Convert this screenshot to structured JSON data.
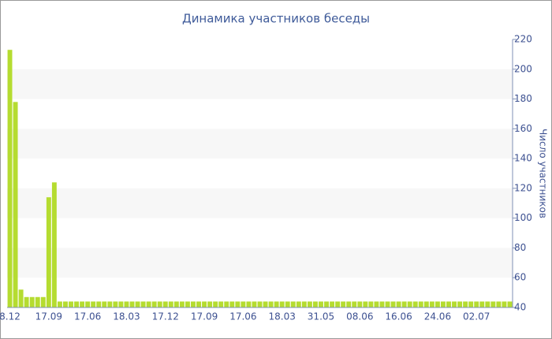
{
  "chart_data": {
    "type": "bar",
    "title": "Динамика участников беседы",
    "y_label": "Число участников",
    "categories": [
      "8.12",
      null,
      null,
      null,
      null,
      null,
      null,
      "17.09",
      null,
      null,
      null,
      null,
      null,
      null,
      "17.06",
      null,
      null,
      null,
      null,
      null,
      null,
      "18.03",
      null,
      null,
      null,
      null,
      null,
      null,
      "17.12",
      null,
      null,
      null,
      null,
      null,
      null,
      "17.09",
      null,
      null,
      null,
      null,
      null,
      null,
      "17.06",
      null,
      null,
      null,
      null,
      null,
      null,
      "18.03",
      null,
      null,
      null,
      null,
      null,
      null,
      "31.05",
      null,
      null,
      null,
      null,
      null,
      null,
      "08.06",
      null,
      null,
      null,
      null,
      null,
      null,
      "16.06",
      null,
      null,
      null,
      null,
      null,
      null,
      "24.06",
      null,
      null,
      null,
      null,
      null,
      null,
      "02.07",
      null,
      null,
      null,
      null,
      null,
      null
    ],
    "values": [
      213,
      178,
      52,
      47,
      47,
      47,
      47,
      114,
      124,
      44,
      44,
      44,
      44,
      44,
      44,
      44,
      44,
      44,
      44,
      44,
      44,
      44,
      44,
      44,
      44,
      44,
      44,
      44,
      44,
      44,
      44,
      44,
      44,
      44,
      44,
      44,
      44,
      44,
      44,
      44,
      44,
      44,
      44,
      44,
      44,
      44,
      44,
      44,
      44,
      44,
      44,
      44,
      44,
      44,
      44,
      44,
      44,
      44,
      44,
      44,
      44,
      44,
      44,
      44,
      44,
      44,
      44,
      44,
      44,
      44,
      44,
      44,
      44,
      44,
      44,
      44,
      44,
      44,
      44,
      44,
      44,
      44,
      44,
      44,
      44,
      44,
      44,
      44,
      44,
      44,
      44
    ],
    "color": "#b5dc30",
    "ylim": [
      40,
      220
    ],
    "yticks": [
      40,
      60,
      80,
      100,
      120,
      140,
      160,
      180,
      200,
      220
    ],
    "y_axis_side": "right",
    "grid_bands": true
  }
}
